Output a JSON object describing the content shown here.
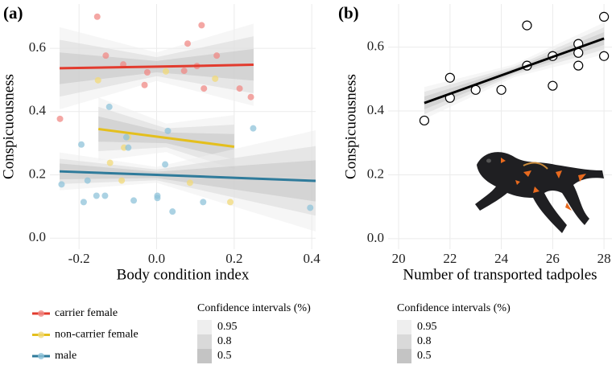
{
  "chart_data": [
    {
      "type": "scatter",
      "panel_label": "(a)",
      "x_label": "Body condition index",
      "y_label": "Conspicuousness",
      "xlim": [
        -0.275,
        0.41
      ],
      "ylim": [
        -0.035,
        0.74
      ],
      "xticks": [
        -0.2,
        {
          "value": 0,
          "label": "0.0"
        },
        0.2,
        0.4
      ],
      "yticks": [
        {
          "value": 0,
          "label": "0.0"
        },
        0.2,
        0.4,
        0.6
      ],
      "grid": true,
      "ci_legend": {
        "title": "Confidence intervals (%)",
        "levels": [
          0.95,
          0.8,
          0.5
        ],
        "colors": [
          "#eeeeee",
          "#d9d9d9",
          "#c4c4c4"
        ]
      },
      "series": [
        {
          "name": "carrier female",
          "color": "#e23b2e",
          "point_color": "#f08a85",
          "x": [
            -0.249,
            -0.153,
            -0.131,
            -0.086,
            -0.024,
            -0.031,
            0.071,
            0.08,
            0.116,
            0.104,
            0.122,
            0.155,
            0.214,
            0.243
          ],
          "values": [
            0.377,
            0.7,
            0.577,
            0.549,
            0.524,
            0.484,
            0.529,
            0.615,
            0.673,
            0.544,
            0.473,
            0.577,
            0.473,
            0.446
          ],
          "fit": {
            "x": [
              -0.25,
              0.0,
              0.25
            ],
            "y": [
              0.537,
              0.542,
              0.548
            ],
            "ci": [
              {
                "lower": [
                  0.407,
                  0.497,
                  0.418
                ],
                "upper": [
                  0.667,
                  0.587,
                  0.678
                ]
              },
              {
                "lower": [
                  0.447,
                  0.512,
                  0.458
                ],
                "upper": [
                  0.627,
                  0.572,
                  0.638
                ]
              },
              {
                "lower": [
                  0.487,
                  0.524,
                  0.498
                ],
                "upper": [
                  0.587,
                  0.56,
                  0.598
                ]
              }
            ]
          }
        },
        {
          "name": "non-carrier female",
          "color": "#e4bf1d",
          "point_color": "#f1d97a",
          "x": [
            -0.151,
            -0.084,
            -0.073,
            -0.12,
            -0.09,
            0.024,
            0.151,
            0.086,
            0.19
          ],
          "values": [
            0.499,
            0.286,
            0.319,
            0.238,
            0.182,
            0.527,
            0.504,
            0.175,
            0.114
          ],
          "fit": {
            "x": [
              -0.15,
              0.025,
              0.2
            ],
            "y": [
              0.345,
              0.317,
              0.289
            ],
            "ci": [
              {
                "lower": [
                  0.245,
                  0.272,
                  0.189
                ],
                "upper": [
                  0.445,
                  0.362,
                  0.389
                ]
              },
              {
                "lower": [
                  0.275,
                  0.287,
                  0.219
                ],
                "upper": [
                  0.415,
                  0.347,
                  0.359
                ]
              },
              {
                "lower": [
                  0.305,
                  0.3,
                  0.249
                ],
                "upper": [
                  0.385,
                  0.334,
                  0.329
                ]
              }
            ]
          }
        },
        {
          "name": "male",
          "color": "#2f7b9b",
          "point_color": "#8fc3d9",
          "x": [
            -0.245,
            -0.194,
            -0.188,
            -0.178,
            -0.155,
            -0.133,
            -0.122,
            -0.078,
            -0.073,
            -0.059,
            0.002,
            0.002,
            0.029,
            0.022,
            0.041,
            0.12,
            0.249,
            0.396
          ],
          "values": [
            0.17,
            0.296,
            0.114,
            0.182,
            0.134,
            0.134,
            0.415,
            0.319,
            0.286,
            0.119,
            0.134,
            0.127,
            0.339,
            0.233,
            0.084,
            0.114,
            0.347,
            0.096
          ],
          "fit": {
            "x": [
              -0.25,
              0.0,
              0.41
            ],
            "y": [
              0.211,
              0.2,
              0.181
            ],
            "ci": [
              {
                "lower": [
                  0.151,
                  0.175,
                  0.021
                ],
                "upper": [
                  0.271,
                  0.225,
                  0.341
                ]
              },
              {
                "lower": [
                  0.171,
                  0.183,
                  0.071
                ],
                "upper": [
                  0.251,
                  0.217,
                  0.291
                ]
              },
              {
                "lower": [
                  0.186,
                  0.19,
                  0.116
                ],
                "upper": [
                  0.236,
                  0.21,
                  0.246
                ]
              }
            ]
          }
        }
      ]
    },
    {
      "type": "scatter",
      "panel_label": "(b)",
      "x_label": "Number of transported tadpoles",
      "y_label": "Conspicuousness",
      "xlim": [
        19.59,
        28.31
      ],
      "ylim": [
        -0.033,
        0.735
      ],
      "xticks": [
        20,
        22,
        24,
        26,
        28
      ],
      "yticks": [
        {
          "value": 0,
          "label": "0.0"
        },
        0.2,
        0.4,
        0.6
      ],
      "grid": true,
      "ci_legend": {
        "title": "Confidence intervals (%)",
        "levels": [
          0.95,
          0.8,
          0.5
        ],
        "colors": [
          "#eeeeee",
          "#d9d9d9",
          "#c4c4c4"
        ]
      },
      "series": [
        {
          "color": "#000000",
          "point_color": "#ffffff",
          "x": [
            21,
            22,
            22,
            23,
            24,
            25,
            25,
            26,
            26,
            27,
            27,
            27,
            28,
            28
          ],
          "values": [
            0.37,
            0.504,
            0.441,
            0.466,
            0.466,
            0.668,
            0.542,
            0.572,
            0.479,
            0.61,
            0.582,
            0.542,
            0.695,
            0.572
          ],
          "fit": {
            "x": [
              21,
              24.5,
              28
            ],
            "y": [
              0.425,
              0.526,
              0.627
            ],
            "ci": [
              {
                "lower": [
                  0.375,
                  0.506,
                  0.577
                ],
                "upper": [
                  0.475,
                  0.546,
                  0.677
                ]
              },
              {
                "lower": [
                  0.39,
                  0.513,
                  0.592
                ],
                "upper": [
                  0.46,
                  0.539,
                  0.662
                ]
              },
              {
                "lower": [
                  0.405,
                  0.518,
                  0.607
                ],
                "upper": [
                  0.445,
                  0.534,
                  0.647
                ]
              }
            ]
          }
        }
      ]
    }
  ]
}
